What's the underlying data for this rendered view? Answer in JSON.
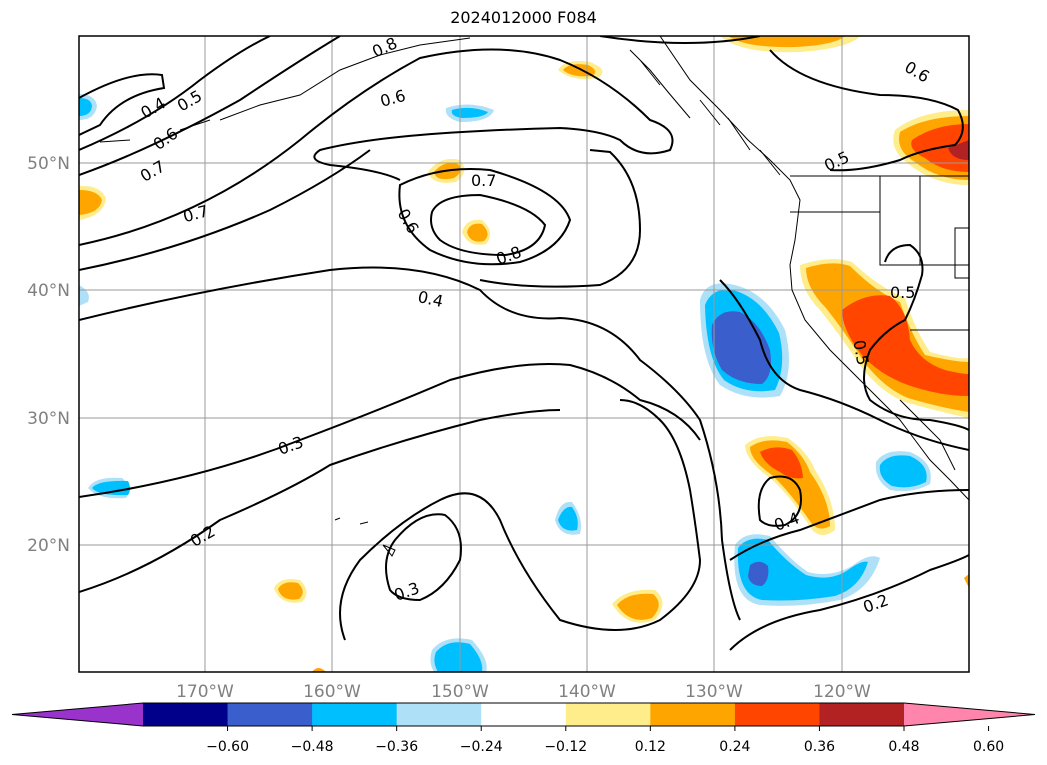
{
  "title": "2024012000 F084",
  "axes": {
    "lon_labels": [
      "170°W",
      "160°W",
      "150°W",
      "140°W",
      "130°W",
      "120°W"
    ],
    "lat_labels": [
      "50°N",
      "40°N",
      "30°N",
      "20°N"
    ]
  },
  "contour_labels": [
    "0.8",
    "0.6",
    "0.4",
    "0.5",
    "0.6",
    "0.7",
    "0.7",
    "0.6",
    "0.7",
    "0.8",
    "0.6",
    "0.4",
    "0.5",
    "0.5",
    "0.5",
    "0.3",
    "0.2",
    "0.3",
    "0.4",
    "0.2"
  ],
  "colorbar": {
    "colors": [
      "#9933cc",
      "#00008b",
      "#3a5fcd",
      "#00bfff",
      "#aee0f8",
      "#ffffff",
      "#ffec8b",
      "#ffa500",
      "#ff4500",
      "#b22222",
      "#ff85ad"
    ],
    "tick_labels": [
      "−0.60",
      "−0.48",
      "−0.36",
      "−0.24",
      "−0.12",
      "0.12",
      "0.24",
      "0.36",
      "0.48",
      "0.60"
    ]
  }
}
